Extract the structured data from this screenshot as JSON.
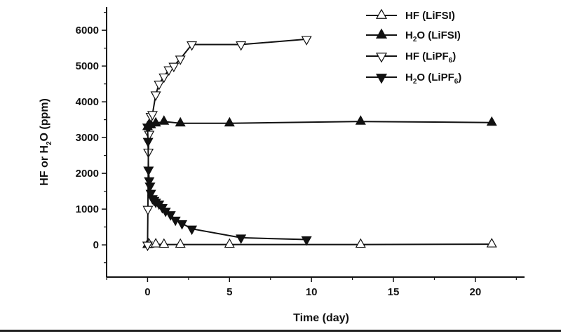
{
  "chart_data": {
    "type": "line",
    "xlabel": "Time (day)",
    "ylabel": {
      "pre": "HF or H",
      "sub": "2",
      "post": "O (ppm)"
    },
    "xlim": [
      -2.5,
      23
    ],
    "ylim": [
      -900,
      6650
    ],
    "xticks": [
      0,
      5,
      10,
      15,
      20
    ],
    "yticks": [
      0,
      1000,
      2000,
      3000,
      4000,
      5000,
      6000
    ],
    "grid": false,
    "legend_position": "top-right",
    "series": [
      {
        "name": {
          "pre": "HF (LiFSI)",
          "sub": "",
          "post": ""
        },
        "marker": "triangle-up-open",
        "x": [
          0,
          0.04,
          0.1,
          0.5,
          1,
          2,
          5,
          13,
          21
        ],
        "y": [
          0,
          30,
          10,
          20,
          10,
          10,
          10,
          10,
          20
        ]
      },
      {
        "name": {
          "pre": "H",
          "sub": "2",
          "post": "O (LiFSI)"
        },
        "marker": "triangle-up-filled",
        "x": [
          0,
          0.08,
          0.2,
          0.5,
          1,
          2,
          5,
          13,
          21
        ],
        "y": [
          3300,
          3350,
          3350,
          3400,
          3450,
          3400,
          3400,
          3450,
          3420
        ]
      },
      {
        "name": {
          "pre": "HF (LiPF",
          "sub": "6",
          "post": ")"
        },
        "marker": "triangle-down-open",
        "x": [
          0,
          0.02,
          0.05,
          0.1,
          0.2,
          0.3,
          0.5,
          0.7,
          1,
          1.3,
          1.6,
          2,
          2.7,
          5.7,
          9.7
        ],
        "y": [
          0,
          1000,
          2600,
          3100,
          3600,
          3650,
          4200,
          4500,
          4700,
          4900,
          5000,
          5200,
          5600,
          5600,
          5750
        ]
      },
      {
        "name": {
          "pre": "H",
          "sub": "2",
          "post": "O (LiPF",
          "sub2": "6",
          "post2": ")"
        },
        "marker": "triangle-down-filled",
        "x": [
          0,
          0.03,
          0.06,
          0.1,
          0.15,
          0.2,
          0.3,
          0.4,
          0.5,
          0.7,
          0.9,
          1.1,
          1.4,
          1.7,
          2.1,
          2.7,
          5.7,
          9.7
        ],
        "y": [
          3300,
          2900,
          2100,
          1800,
          1650,
          1450,
          1300,
          1250,
          1200,
          1150,
          1050,
          950,
          850,
          700,
          600,
          450,
          200,
          150
        ]
      }
    ]
  }
}
